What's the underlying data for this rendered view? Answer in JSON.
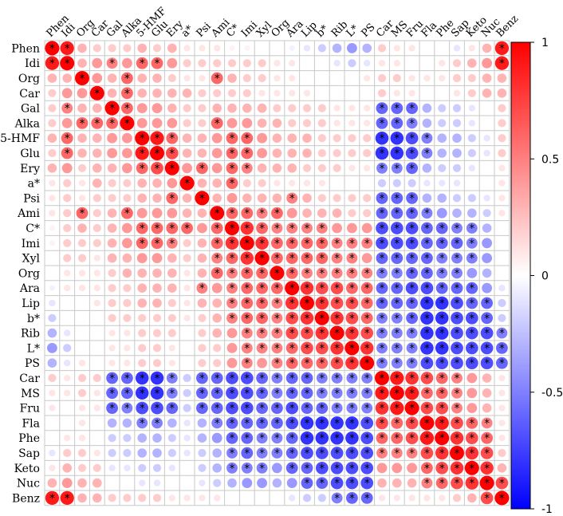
{
  "chart_data": {
    "type": "heatmap",
    "variables": [
      "Phen",
      "Idi",
      "Org",
      "Car",
      "Gal",
      "Alka",
      "5-HMF",
      "Glu",
      "Ery",
      "a*",
      "Psi",
      "Ami",
      "C*",
      "Imi",
      "Xyl",
      "Org",
      "Ara",
      "Lip",
      "b*",
      "Rib",
      "L*",
      "PS",
      "Car",
      "MS",
      "Fru",
      "Fla",
      "Phe",
      "Sap",
      "Keto",
      "Nuc",
      "Benz"
    ],
    "colorbar": {
      "min": -1,
      "max": 1,
      "ticks": [
        "1",
        "0.5",
        "0",
        "-0.5",
        "-1"
      ],
      "colors": {
        "positive": "#ff0000",
        "zero": "#ffffff",
        "negative": "#0000ff"
      }
    },
    "significance_marker": "*",
    "values": [
      [
        1.0,
        0.9,
        0.3,
        0.2,
        0.2,
        0.2,
        0.3,
        0.2,
        0.3,
        0.1,
        0.1,
        0.1,
        0.05,
        0.05,
        0.0,
        0.0,
        -0.05,
        -0.1,
        -0.2,
        -0.3,
        -0.4,
        -0.3,
        0.2,
        0.1,
        0.1,
        0.0,
        0.0,
        -0.1,
        0.1,
        0.3,
        0.9
      ],
      [
        0.9,
        1.0,
        0.3,
        0.4,
        0.5,
        0.4,
        0.6,
        0.6,
        0.4,
        0.2,
        0.2,
        0.2,
        0.2,
        0.2,
        0.2,
        0.1,
        0.1,
        0.0,
        0.0,
        -0.1,
        -0.2,
        -0.1,
        0.1,
        0.1,
        0.0,
        0.0,
        0.1,
        0.2,
        0.3,
        0.4,
        0.9
      ],
      [
        0.3,
        0.3,
        1.0,
        0.4,
        0.3,
        0.6,
        0.3,
        0.3,
        0.2,
        0.1,
        0.1,
        0.6,
        0.3,
        0.2,
        0.2,
        0.1,
        0.1,
        0.0,
        0.0,
        0.0,
        0.0,
        0.1,
        0.2,
        0.2,
        0.1,
        0.1,
        0.1,
        0.2,
        0.2,
        0.3,
        0.3
      ],
      [
        0.2,
        0.4,
        0.4,
        1.0,
        0.3,
        0.6,
        0.3,
        0.3,
        0.3,
        0.3,
        0.2,
        0.2,
        0.2,
        0.2,
        0.1,
        0.1,
        0.1,
        0.1,
        0.0,
        0.0,
        0.0,
        0.0,
        0.2,
        0.1,
        0.1,
        0.0,
        0.0,
        0.1,
        0.2,
        0.3,
        0.3
      ],
      [
        0.2,
        0.5,
        0.3,
        0.3,
        1.0,
        0.6,
        0.4,
        0.4,
        0.3,
        0.2,
        0.2,
        0.3,
        0.3,
        0.3,
        0.3,
        0.2,
        0.2,
        0.2,
        0.2,
        0.1,
        0.1,
        0.1,
        -0.6,
        -0.6,
        -0.6,
        -0.3,
        -0.2,
        -0.2,
        -0.1,
        0.0,
        0.2
      ],
      [
        0.2,
        0.4,
        0.6,
        0.6,
        0.6,
        1.0,
        0.4,
        0.4,
        0.4,
        0.2,
        0.2,
        0.6,
        0.4,
        0.4,
        0.3,
        0.3,
        0.2,
        0.2,
        0.2,
        0.1,
        0.1,
        0.1,
        -0.6,
        -0.6,
        -0.5,
        -0.3,
        -0.2,
        -0.2,
        -0.1,
        0.0,
        0.2
      ],
      [
        0.3,
        0.6,
        0.3,
        0.3,
        0.4,
        0.4,
        1.0,
        0.9,
        0.6,
        0.3,
        0.3,
        0.4,
        0.6,
        0.6,
        0.4,
        0.3,
        0.3,
        0.3,
        0.2,
        0.2,
        0.2,
        0.2,
        -0.8,
        -0.8,
        -0.7,
        -0.5,
        -0.3,
        -0.3,
        -0.2,
        -0.1,
        0.2
      ],
      [
        0.2,
        0.6,
        0.3,
        0.3,
        0.4,
        0.4,
        0.9,
        1.0,
        0.7,
        0.3,
        0.3,
        0.4,
        0.6,
        0.6,
        0.4,
        0.3,
        0.3,
        0.3,
        0.2,
        0.2,
        0.2,
        0.2,
        -0.8,
        -0.8,
        -0.7,
        -0.5,
        -0.3,
        -0.3,
        -0.2,
        -0.1,
        0.2
      ],
      [
        0.3,
        0.4,
        0.2,
        0.3,
        0.3,
        0.4,
        0.6,
        0.7,
        1.0,
        0.4,
        0.6,
        0.4,
        0.6,
        0.5,
        0.3,
        0.3,
        0.3,
        0.2,
        0.2,
        0.2,
        0.1,
        0.1,
        -0.5,
        -0.5,
        -0.6,
        -0.3,
        -0.2,
        -0.2,
        -0.1,
        0.0,
        0.1
      ],
      [
        0.1,
        0.2,
        0.1,
        0.3,
        0.2,
        0.2,
        0.3,
        0.3,
        0.4,
        1.0,
        0.3,
        0.3,
        0.6,
        0.2,
        0.2,
        0.1,
        0.1,
        0.1,
        0.1,
        0.0,
        0.0,
        0.0,
        -0.2,
        -0.2,
        -0.2,
        -0.1,
        -0.1,
        -0.1,
        0.0,
        0.0,
        0.1
      ],
      [
        0.1,
        0.2,
        0.1,
        0.2,
        0.2,
        0.2,
        0.3,
        0.3,
        0.6,
        0.3,
        1.0,
        0.3,
        0.4,
        0.3,
        0.3,
        0.3,
        0.5,
        0.3,
        0.2,
        0.2,
        0.2,
        0.2,
        -0.6,
        -0.6,
        -0.6,
        -0.3,
        -0.3,
        -0.2,
        -0.2,
        -0.1,
        0.1
      ],
      [
        0.1,
        0.2,
        0.6,
        0.2,
        0.3,
        0.6,
        0.4,
        0.4,
        0.4,
        0.3,
        0.3,
        1.0,
        0.6,
        0.6,
        0.5,
        0.6,
        0.4,
        0.3,
        0.3,
        0.3,
        0.2,
        0.2,
        -0.6,
        -0.6,
        -0.6,
        -0.5,
        -0.4,
        -0.3,
        -0.3,
        -0.2,
        0.1
      ],
      [
        0.05,
        0.2,
        0.3,
        0.2,
        0.3,
        0.4,
        0.6,
        0.6,
        0.6,
        0.6,
        0.4,
        0.6,
        1.0,
        0.8,
        0.6,
        0.5,
        0.5,
        0.5,
        0.5,
        0.4,
        0.4,
        0.4,
        -0.7,
        -0.7,
        -0.7,
        -0.6,
        -0.6,
        -0.5,
        -0.5,
        -0.3,
        0.0
      ],
      [
        0.05,
        0.2,
        0.2,
        0.2,
        0.3,
        0.4,
        0.6,
        0.6,
        0.5,
        0.2,
        0.3,
        0.6,
        0.8,
        1.0,
        0.8,
        0.6,
        0.6,
        0.6,
        0.6,
        0.5,
        0.5,
        0.5,
        -0.7,
        -0.7,
        -0.7,
        -0.6,
        -0.6,
        -0.6,
        -0.5,
        -0.4,
        0.0
      ],
      [
        0.0,
        0.2,
        0.2,
        0.1,
        0.3,
        0.3,
        0.4,
        0.4,
        0.3,
        0.2,
        0.3,
        0.5,
        0.6,
        0.8,
        1.0,
        0.6,
        0.6,
        0.6,
        0.6,
        0.5,
        0.5,
        0.4,
        -0.6,
        -0.6,
        -0.6,
        -0.6,
        -0.5,
        -0.5,
        -0.5,
        -0.4,
        0.0
      ],
      [
        0.0,
        0.1,
        0.1,
        0.1,
        0.2,
        0.3,
        0.3,
        0.3,
        0.3,
        0.1,
        0.3,
        0.6,
        0.5,
        0.6,
        0.6,
        1.0,
        0.6,
        0.5,
        0.5,
        0.5,
        0.5,
        0.5,
        -0.5,
        -0.5,
        -0.6,
        -0.6,
        -0.5,
        -0.5,
        -0.4,
        -0.3,
        0.0
      ],
      [
        -0.05,
        0.1,
        0.1,
        0.1,
        0.2,
        0.2,
        0.3,
        0.3,
        0.3,
        0.1,
        0.5,
        0.4,
        0.5,
        0.6,
        0.6,
        0.6,
        1.0,
        0.8,
        0.7,
        0.7,
        0.6,
        0.6,
        -0.6,
        -0.6,
        -0.7,
        -0.7,
        -0.6,
        -0.6,
        -0.6,
        -0.4,
        -0.1
      ],
      [
        -0.1,
        0.0,
        0.0,
        0.1,
        0.2,
        0.2,
        0.3,
        0.3,
        0.2,
        0.1,
        0.3,
        0.3,
        0.5,
        0.6,
        0.6,
        0.5,
        0.8,
        1.0,
        0.8,
        0.7,
        0.7,
        0.6,
        -0.6,
        -0.6,
        -0.6,
        -0.8,
        -0.8,
        -0.7,
        -0.6,
        -0.6,
        -0.2
      ],
      [
        -0.2,
        0.0,
        0.0,
        0.0,
        0.2,
        0.2,
        0.2,
        0.2,
        0.2,
        0.1,
        0.2,
        0.3,
        0.5,
        0.6,
        0.6,
        0.5,
        0.7,
        0.8,
        1.0,
        0.8,
        0.7,
        0.6,
        -0.5,
        -0.5,
        -0.6,
        -0.8,
        -0.8,
        -0.7,
        -0.7,
        -0.6,
        -0.2
      ],
      [
        -0.3,
        -0.1,
        0.0,
        0.0,
        0.1,
        0.1,
        0.2,
        0.2,
        0.2,
        0.0,
        0.2,
        0.3,
        0.4,
        0.5,
        0.5,
        0.5,
        0.7,
        0.7,
        0.8,
        1.0,
        0.8,
        0.7,
        -0.5,
        -0.5,
        -0.5,
        -0.8,
        -0.8,
        -0.7,
        -0.7,
        -0.7,
        -0.5
      ],
      [
        -0.4,
        -0.2,
        0.0,
        0.0,
        0.1,
        0.1,
        0.2,
        0.2,
        0.1,
        0.0,
        0.2,
        0.2,
        0.4,
        0.5,
        0.5,
        0.5,
        0.6,
        0.7,
        0.7,
        0.8,
        1.0,
        0.8,
        -0.5,
        -0.5,
        -0.5,
        -0.8,
        -0.8,
        -0.7,
        -0.7,
        -0.7,
        -0.6
      ],
      [
        -0.3,
        -0.1,
        0.1,
        0.0,
        0.1,
        0.1,
        0.2,
        0.2,
        0.1,
        0.0,
        0.2,
        0.2,
        0.4,
        0.5,
        0.4,
        0.5,
        0.6,
        0.6,
        0.6,
        0.7,
        0.8,
        1.0,
        -0.5,
        -0.5,
        -0.5,
        -0.7,
        -0.7,
        -0.7,
        -0.7,
        -0.7,
        -0.6
      ],
      [
        0.2,
        0.1,
        0.2,
        0.2,
        -0.6,
        -0.6,
        -0.8,
        -0.8,
        -0.5,
        -0.2,
        -0.6,
        -0.6,
        -0.7,
        -0.7,
        -0.6,
        -0.5,
        -0.6,
        -0.6,
        -0.5,
        -0.5,
        -0.5,
        -0.5,
        1.0,
        0.9,
        0.8,
        0.7,
        0.6,
        0.5,
        0.4,
        0.3,
        0.1
      ],
      [
        0.1,
        0.1,
        0.2,
        0.1,
        -0.6,
        -0.6,
        -0.8,
        -0.8,
        -0.5,
        -0.2,
        -0.6,
        -0.6,
        -0.7,
        -0.7,
        -0.6,
        -0.5,
        -0.6,
        -0.6,
        -0.5,
        -0.5,
        -0.5,
        -0.5,
        0.9,
        1.0,
        0.9,
        0.6,
        0.6,
        0.5,
        0.4,
        0.3,
        0.1
      ],
      [
        0.1,
        0.0,
        0.1,
        0.1,
        -0.6,
        -0.5,
        -0.7,
        -0.7,
        -0.6,
        -0.2,
        -0.6,
        -0.6,
        -0.7,
        -0.7,
        -0.6,
        -0.6,
        -0.7,
        -0.6,
        -0.6,
        -0.5,
        -0.5,
        -0.5,
        0.8,
        0.9,
        1.0,
        0.7,
        0.7,
        0.5,
        0.4,
        0.3,
        0.1
      ],
      [
        0.0,
        0.0,
        0.1,
        0.0,
        -0.3,
        -0.3,
        -0.5,
        -0.5,
        -0.3,
        -0.1,
        -0.3,
        -0.5,
        -0.6,
        -0.6,
        -0.6,
        -0.6,
        -0.7,
        -0.8,
        -0.8,
        -0.8,
        -0.8,
        -0.7,
        0.7,
        0.6,
        0.7,
        1.0,
        0.9,
        0.7,
        0.6,
        0.5,
        0.1
      ],
      [
        0.0,
        0.1,
        0.1,
        0.0,
        -0.2,
        -0.2,
        -0.3,
        -0.3,
        -0.2,
        -0.1,
        -0.3,
        -0.4,
        -0.6,
        -0.6,
        -0.5,
        -0.5,
        -0.6,
        -0.8,
        -0.8,
        -0.8,
        -0.8,
        -0.7,
        0.6,
        0.6,
        0.7,
        0.9,
        1.0,
        0.8,
        0.7,
        0.6,
        0.1
      ],
      [
        -0.1,
        0.2,
        0.2,
        0.1,
        -0.2,
        -0.2,
        -0.3,
        -0.3,
        -0.2,
        -0.1,
        -0.2,
        -0.3,
        -0.5,
        -0.6,
        -0.5,
        -0.5,
        -0.6,
        -0.7,
        -0.7,
        -0.7,
        -0.7,
        -0.7,
        0.5,
        0.5,
        0.5,
        0.7,
        0.8,
        1.0,
        0.8,
        0.7,
        0.2
      ],
      [
        0.1,
        0.3,
        0.2,
        0.2,
        -0.1,
        -0.1,
        -0.2,
        -0.2,
        -0.1,
        0.0,
        -0.2,
        -0.3,
        -0.5,
        -0.5,
        -0.5,
        -0.4,
        -0.6,
        -0.6,
        -0.7,
        -0.7,
        -0.7,
        -0.7,
        0.4,
        0.4,
        0.4,
        0.6,
        0.7,
        0.8,
        1.0,
        0.8,
        0.3
      ],
      [
        0.3,
        0.4,
        0.3,
        0.3,
        0.0,
        0.0,
        -0.1,
        -0.1,
        0.0,
        0.0,
        -0.1,
        -0.2,
        -0.3,
        -0.4,
        -0.4,
        -0.3,
        -0.4,
        -0.6,
        -0.6,
        -0.7,
        -0.7,
        -0.7,
        0.3,
        0.3,
        0.3,
        0.5,
        0.6,
        0.7,
        0.8,
        1.0,
        0.7
      ],
      [
        0.9,
        0.9,
        0.3,
        0.3,
        0.2,
        0.2,
        0.2,
        0.2,
        0.1,
        0.1,
        0.1,
        0.1,
        0.0,
        0.0,
        0.0,
        0.0,
        -0.1,
        -0.2,
        -0.2,
        -0.5,
        -0.6,
        -0.6,
        0.1,
        0.1,
        0.1,
        0.1,
        0.1,
        0.2,
        0.3,
        0.7,
        1.0
      ]
    ]
  }
}
